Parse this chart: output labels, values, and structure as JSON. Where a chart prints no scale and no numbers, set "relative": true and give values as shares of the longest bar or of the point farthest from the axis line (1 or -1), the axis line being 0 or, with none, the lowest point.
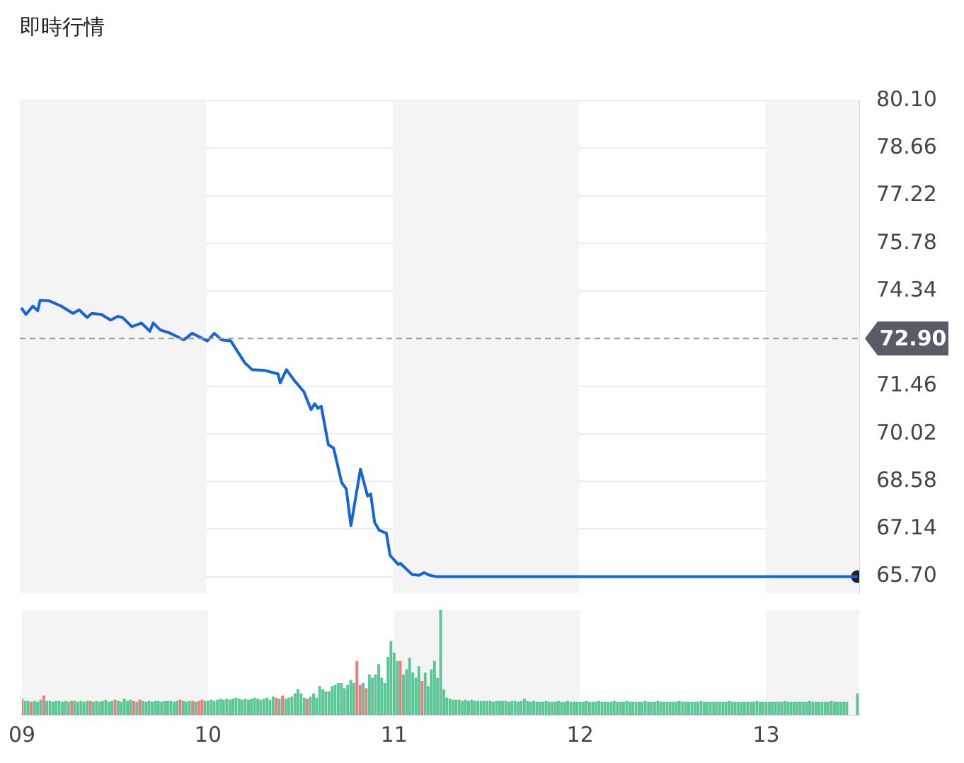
{
  "chart_data": [
    {
      "type": "line",
      "title": "即時行情",
      "tick_labels": "y",
      "grid": "y",
      "marker": "none",
      "xlim": [
        9,
        13.5
      ],
      "ylim": [
        65.2,
        80.1
      ],
      "yticks": [
        {
          "value": 65.7,
          "label": "65.70"
        },
        67.14,
        68.58,
        70.02,
        71.46,
        74.34,
        75.78,
        77.22,
        78.66,
        {
          "value": 80.1,
          "label": "80.10"
        }
      ],
      "x": [
        9.008,
        9.033,
        9.07,
        9.096,
        9.109,
        9.159,
        9.222,
        9.285,
        9.318,
        9.361,
        9.386,
        9.437,
        9.487,
        9.525,
        9.55,
        9.601,
        9.652,
        9.697,
        9.715,
        9.753,
        9.803,
        9.879,
        9.924,
        10.005,
        10.043,
        10.081,
        10.131,
        10.207,
        10.245,
        10.308,
        10.384,
        10.396,
        10.429,
        10.472,
        10.523,
        10.561,
        10.581,
        10.598,
        10.616,
        10.654,
        10.682,
        10.725,
        10.75,
        10.775,
        10.826,
        10.864,
        10.881,
        10.902,
        10.927,
        10.965,
        10.985,
        11.028,
        11.04,
        11.104,
        11.141,
        11.167,
        11.192,
        11.23,
        13.49
      ],
      "series": [
        {
          "color": "#1565d8",
          "values": [
            73.83,
            73.63,
            73.88,
            73.74,
            74.06,
            74.04,
            73.88,
            73.66,
            73.77,
            73.54,
            73.66,
            73.63,
            73.46,
            73.57,
            73.54,
            73.26,
            73.37,
            73.12,
            73.37,
            73.16,
            73.07,
            72.86,
            73.06,
            72.83,
            73.06,
            72.86,
            72.83,
            72.16,
            71.96,
            71.94,
            71.83,
            71.56,
            71.96,
            71.63,
            71.29,
            70.75,
            70.93,
            70.79,
            70.85,
            69.69,
            69.59,
            68.55,
            68.35,
            67.24,
            68.95,
            68.14,
            68.2,
            67.34,
            67.1,
            67.01,
            66.34,
            66.07,
            66.1,
            65.76,
            65.74,
            65.82,
            65.75,
            65.7,
            65.7
          ]
        },
        {
          "type": "scatter",
          "marker": "circle",
          "color": "#222222",
          "x": [
            13.49
          ],
          "values": [
            65.7
          ]
        }
      ],
      "ref_lines": [
        {
          "axis": "y",
          "value": 72.9,
          "label": "72.90",
          "color": "#999999",
          "line_style": "dashed"
        }
      ],
      "bands": [
        {
          "axis": "x",
          "from": 9,
          "to": 10,
          "color": "#f4f4f4"
        },
        {
          "axis": "x",
          "from": 11,
          "to": 12,
          "color": "#f4f4f4"
        },
        {
          "axis": "x",
          "from": 13,
          "to": 13.5,
          "color": "#f4f4f4"
        }
      ]
    },
    {
      "type": "bar",
      "relative": true,
      "tick_labels": "x",
      "xlim": [
        9,
        13.5
      ],
      "xticks": [
        {
          "value": 9,
          "label": "09"
        },
        {
          "value": 10,
          "label": "10"
        },
        {
          "value": 11,
          "label": "11"
        },
        {
          "value": 12,
          "label": "12"
        },
        {
          "value": 13,
          "label": "13"
        }
      ],
      "bands": [
        {
          "axis": "x",
          "from": 9,
          "to": 10,
          "color": "#f4f4f4"
        },
        {
          "axis": "x",
          "from": 11,
          "to": 12,
          "color": "#f4f4f4"
        },
        {
          "axis": "x",
          "from": 13,
          "to": 13.5,
          "color": "#f4f4f4"
        }
      ],
      "x": [
        9,
        9.017,
        9.033,
        9.05,
        9.067,
        9.083,
        9.1,
        9.117,
        9.133,
        9.15,
        9.167,
        9.183,
        9.2,
        9.217,
        9.233,
        9.25,
        9.267,
        9.283,
        9.3,
        9.317,
        9.333,
        9.35,
        9.367,
        9.383,
        9.4,
        9.417,
        9.433,
        9.45,
        9.467,
        9.483,
        9.5,
        9.517,
        9.533,
        9.55,
        9.567,
        9.583,
        9.6,
        9.617,
        9.633,
        9.65,
        9.667,
        9.683,
        9.7,
        9.717,
        9.733,
        9.75,
        9.767,
        9.783,
        9.8,
        9.817,
        9.833,
        9.85,
        9.867,
        9.883,
        9.9,
        9.917,
        9.933,
        9.95,
        9.967,
        9.983,
        10,
        10.017,
        10.033,
        10.05,
        10.067,
        10.083,
        10.1,
        10.117,
        10.133,
        10.15,
        10.167,
        10.183,
        10.2,
        10.217,
        10.233,
        10.25,
        10.267,
        10.283,
        10.3,
        10.317,
        10.333,
        10.35,
        10.367,
        10.383,
        10.4,
        10.417,
        10.433,
        10.45,
        10.467,
        10.483,
        10.5,
        10.517,
        10.533,
        10.55,
        10.567,
        10.583,
        10.6,
        10.617,
        10.633,
        10.65,
        10.667,
        10.683,
        10.7,
        10.717,
        10.733,
        10.75,
        10.767,
        10.783,
        10.8,
        10.817,
        10.833,
        10.85,
        10.867,
        10.883,
        10.9,
        10.917,
        10.933,
        10.95,
        10.967,
        10.983,
        11,
        11.017,
        11.033,
        11.05,
        11.067,
        11.083,
        11.1,
        11.117,
        11.133,
        11.15,
        11.167,
        11.183,
        11.2,
        11.217,
        11.233,
        11.25,
        11.267,
        11.283,
        11.3,
        11.317,
        11.333,
        11.35,
        11.367,
        11.383,
        11.4,
        11.417,
        11.433,
        11.45,
        11.467,
        11.483,
        11.5,
        11.517,
        11.533,
        11.55,
        11.567,
        11.583,
        11.6,
        11.617,
        11.633,
        11.65,
        11.667,
        11.683,
        11.7,
        11.717,
        11.733,
        11.75,
        11.767,
        11.783,
        11.8,
        11.817,
        11.833,
        11.85,
        11.867,
        11.883,
        11.9,
        11.917,
        11.933,
        11.95,
        11.967,
        11.983,
        12,
        12.017,
        12.033,
        12.05,
        12.067,
        12.083,
        12.1,
        12.117,
        12.133,
        12.15,
        12.167,
        12.183,
        12.2,
        12.217,
        12.233,
        12.25,
        12.267,
        12.283,
        12.3,
        12.317,
        12.333,
        12.35,
        12.367,
        12.383,
        12.4,
        12.417,
        12.433,
        12.45,
        12.467,
        12.483,
        12.5,
        12.517,
        12.533,
        12.55,
        12.567,
        12.583,
        12.6,
        12.617,
        12.633,
        12.65,
        12.667,
        12.683,
        12.7,
        12.717,
        12.733,
        12.75,
        12.767,
        12.783,
        12.8,
        12.817,
        12.833,
        12.85,
        12.867,
        12.883,
        12.9,
        12.917,
        12.933,
        12.95,
        12.967,
        12.983,
        13,
        13.017,
        13.033,
        13.05,
        13.067,
        13.083,
        13.1,
        13.117,
        13.133,
        13.15,
        13.167,
        13.183,
        13.2,
        13.217,
        13.233,
        13.25,
        13.267,
        13.283,
        13.3,
        13.317,
        13.333,
        13.35,
        13.367,
        13.383,
        13.4,
        13.417,
        13.433,
        13.49
      ],
      "series": [
        {
          "color": "#5cc697",
          "values": [
            null,
            0.13,
            0.13,
            null,
            0.13,
            0.12,
            0.14,
            null,
            0.13,
            0.13,
            0.12,
            0.13,
            0.13,
            0.12,
            0.13,
            0.12,
            null,
            0.13,
            0.12,
            0.13,
            0.12,
            0.13,
            null,
            0.12,
            0.13,
            0.12,
            0.13,
            0.14,
            0.12,
            0.13,
            null,
            0.13,
            0.12,
            0.15,
            0.13,
            0.14,
            null,
            0.12,
            null,
            0.13,
            0.12,
            0.13,
            0.12,
            0.13,
            0.13,
            0.12,
            0.13,
            0.13,
            0.13,
            0.12,
            0.13,
            null,
            0.13,
            0.12,
            0.13,
            null,
            0.12,
            null,
            null,
            0.13,
            0.13,
            0.14,
            0.13,
            0.14,
            0.15,
            0.14,
            0.15,
            0.14,
            0.15,
            0.16,
            0.15,
            0.14,
            0.15,
            0.14,
            0.15,
            0.16,
            0.15,
            0.14,
            0.15,
            0.16,
            0.14,
            0.17,
            null,
            0.15,
            null,
            0.15,
            0.16,
            0.17,
            0.2,
            0.24,
            0.2,
            0.16,
            null,
            0.17,
            0.2,
            0.16,
            0.27,
            0.24,
            0.22,
            0.22,
            0.27,
            0.28,
            0.3,
            0.3,
            0.25,
            0.28,
            0.33,
            0.3,
            null,
            null,
            0.3,
            null,
            0.38,
            0.35,
            0.38,
            0.48,
            0.35,
            0.3,
            0.55,
            0.7,
            0.59,
            0.51,
            null,
            0.38,
            0.43,
            0.54,
            0.4,
            0.35,
            0.46,
            null,
            0.4,
            0.27,
            0.43,
            0.51,
            0.35,
            1,
            0.24,
            0.16,
            0.15,
            0.14,
            0.14,
            0.14,
            0.13,
            0.14,
            0.13,
            0.14,
            0.13,
            0.13,
            0.13,
            0.13,
            0.13,
            0.13,
            0.12,
            0.13,
            0.13,
            0.13,
            0.13,
            0.12,
            0.13,
            0.13,
            0.12,
            0.13,
            0.15,
            0.13,
            0.12,
            0.13,
            0.12,
            0.12,
            0.12,
            0.13,
            0.12,
            0.12,
            0.12,
            0.13,
            0.12,
            0.12,
            0.13,
            0.12,
            0.12,
            0.12,
            0.12,
            0.12,
            0.13,
            0.12,
            0.12,
            0.12,
            0.13,
            0.12,
            0.12,
            0.12,
            0.12,
            0.13,
            0.12,
            0.12,
            0.12,
            0.13,
            0.12,
            0.12,
            0.12,
            0.12,
            0.12,
            0.13,
            0.12,
            0.12,
            0.12,
            0.13,
            0.12,
            0.12,
            0.12,
            0.12,
            0.12,
            0.12,
            0.13,
            0.12,
            0.12,
            0.12,
            0.12,
            0.12,
            0.12,
            0.13,
            0.12,
            0.12,
            0.12,
            0.12,
            0.12,
            0.12,
            0.12,
            0.12,
            0.13,
            0.12,
            0.12,
            0.12,
            0.12,
            0.12,
            0.12,
            0.12,
            0.12,
            0.13,
            0.12,
            0.12,
            0.12,
            0.12,
            0.12,
            0.12,
            0.12,
            0.12,
            0.13,
            0.12,
            0.12,
            0.12,
            0.12,
            0.12,
            0.12,
            0.12,
            0.13,
            0.12,
            0.12,
            0.12,
            0.12,
            0.12,
            0.12,
            0.13,
            0.12,
            0.12,
            0.12,
            0.12,
            0.12,
            0.2
          ]
        },
        {
          "color": "#ee7b7b",
          "values": [
            0.15,
            null,
            null,
            0.12,
            null,
            null,
            null,
            0.18,
            null,
            null,
            null,
            null,
            null,
            null,
            null,
            null,
            0.13,
            null,
            null,
            null,
            null,
            null,
            0.13,
            null,
            null,
            null,
            null,
            null,
            null,
            null,
            0.14,
            null,
            null,
            null,
            null,
            null,
            0.13,
            null,
            0.14,
            null,
            null,
            null,
            null,
            null,
            null,
            null,
            null,
            null,
            null,
            null,
            null,
            0.14,
            null,
            null,
            null,
            0.13,
            null,
            0.13,
            0.14,
            null,
            null,
            null,
            null,
            null,
            null,
            null,
            null,
            null,
            null,
            null,
            null,
            null,
            null,
            null,
            null,
            null,
            null,
            null,
            null,
            null,
            null,
            null,
            0.16,
            null,
            0.18,
            null,
            null,
            null,
            null,
            null,
            null,
            null,
            0.15,
            null,
            null,
            null,
            null,
            null,
            null,
            null,
            null,
            null,
            null,
            null,
            null,
            null,
            null,
            null,
            0.51,
            0.28,
            null,
            0.25,
            null,
            null,
            null,
            null,
            null,
            null,
            null,
            null,
            null,
            null,
            0.51,
            null,
            null,
            null,
            null,
            null,
            null,
            0.32,
            null,
            null,
            null,
            null,
            null,
            null,
            null,
            null,
            null,
            null,
            null,
            null,
            null,
            null,
            null,
            null,
            null,
            null,
            null,
            null,
            null,
            null,
            null,
            null,
            null,
            null,
            null,
            null,
            null,
            null,
            null,
            null,
            null,
            null,
            null,
            null,
            null,
            null,
            null,
            null,
            null,
            null,
            null,
            null,
            null,
            null,
            null,
            null,
            null,
            null,
            null,
            null,
            null,
            null,
            null,
            null,
            null,
            null,
            null,
            null,
            null,
            null,
            null,
            null,
            null,
            null,
            null,
            null,
            null,
            null,
            null,
            null,
            null,
            null,
            null,
            null,
            null,
            null,
            null,
            null,
            null,
            null,
            null,
            null,
            null,
            null,
            null,
            null,
            null,
            null,
            null,
            null,
            null,
            null,
            null,
            null,
            null,
            null,
            null,
            null,
            null,
            null,
            null,
            null,
            null,
            null,
            null,
            null,
            null,
            null,
            null,
            null,
            null,
            null,
            null,
            null,
            null,
            null,
            null,
            null,
            null,
            null,
            null,
            null,
            null,
            null,
            null,
            null,
            null,
            null,
            null,
            null,
            null,
            null,
            null,
            null,
            null,
            null
          ]
        }
      ]
    }
  ]
}
